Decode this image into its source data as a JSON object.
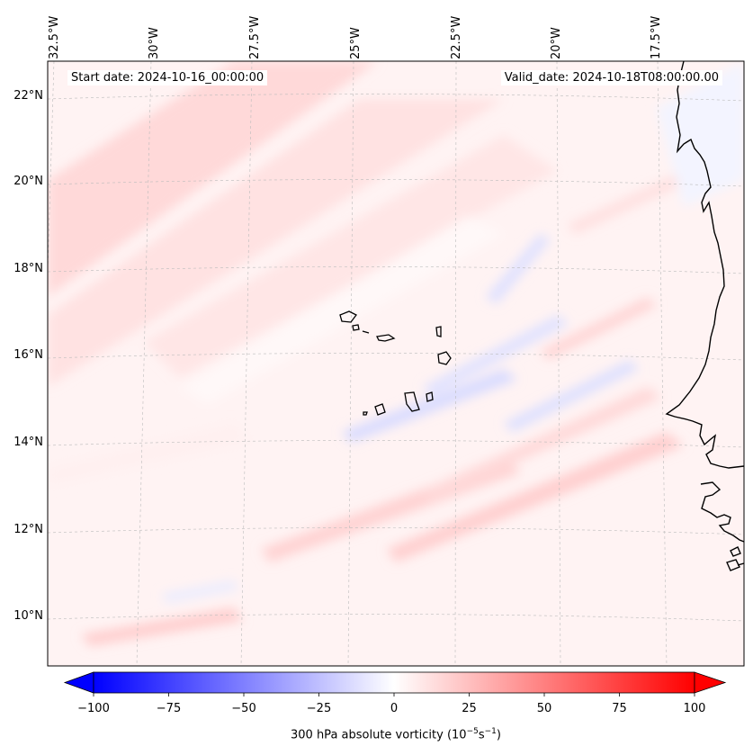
{
  "map": {
    "start_date": "Start date: 2024-10-16_00:00:00",
    "valid_date": "Valid_date: 2024-10-18T08:00:00.00",
    "lon_labels": [
      "32.5°W",
      "30°W",
      "27.5°W",
      "25°W",
      "22.5°W",
      "20°W",
      "17.5°W"
    ],
    "lat_labels": [
      "22°N",
      "20°N",
      "18°N",
      "16°N",
      "14°N",
      "12°N",
      "10°N"
    ],
    "features": [
      "cape-verde-islands",
      "west-africa-coastline"
    ]
  },
  "colorbar": {
    "label_main": "300 hPa absolute vorticity (10",
    "label_exp1": "−5",
    "label_mid": "s",
    "label_exp2": "−1",
    "label_end": ")",
    "ticks": [
      "−100",
      "−75",
      "−50",
      "−25",
      "0",
      "25",
      "50",
      "75",
      "100"
    ],
    "range": [
      -100,
      100
    ],
    "colors": {
      "min": "#0000ff",
      "mid": "#ffffff",
      "max": "#ff0000"
    }
  }
}
